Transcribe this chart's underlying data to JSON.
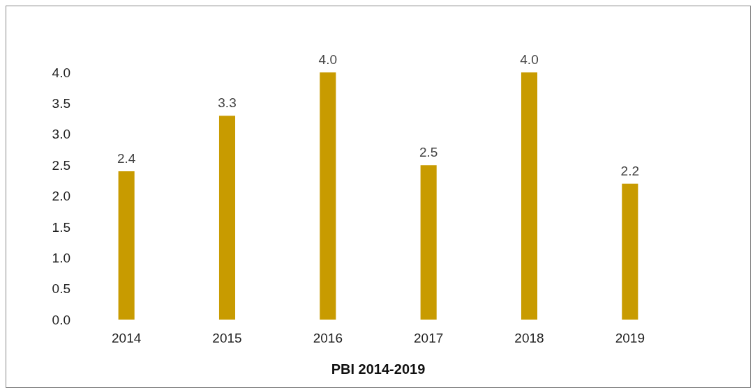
{
  "chart_data": {
    "type": "bar",
    "title": "PBI 2014-2019",
    "categories": [
      "2014",
      "2015",
      "2016",
      "2017",
      "2018",
      "2019"
    ],
    "values": [
      2.4,
      3.3,
      4.0,
      2.5,
      4.0,
      2.2
    ],
    "value_labels": [
      "2.4",
      "3.3",
      "4.0",
      "2.5",
      "4.0",
      "2.2"
    ],
    "color": "#c89b00",
    "ylim": [
      0,
      4
    ],
    "yticks": [
      {
        "value": 0,
        "label": "0.0"
      },
      {
        "value": 0.5,
        "label": "0.5"
      },
      {
        "value": 1,
        "label": "1.0"
      },
      {
        "value": 1.5,
        "label": "1.5"
      },
      {
        "value": 2,
        "label": "2.0"
      },
      {
        "value": 2.5,
        "label": "2.5"
      },
      {
        "value": 3,
        "label": "3.0"
      },
      {
        "value": 3.5,
        "label": "3.5"
      },
      {
        "value": 4,
        "label": "4.0"
      }
    ],
    "grid": false,
    "legend": false
  }
}
